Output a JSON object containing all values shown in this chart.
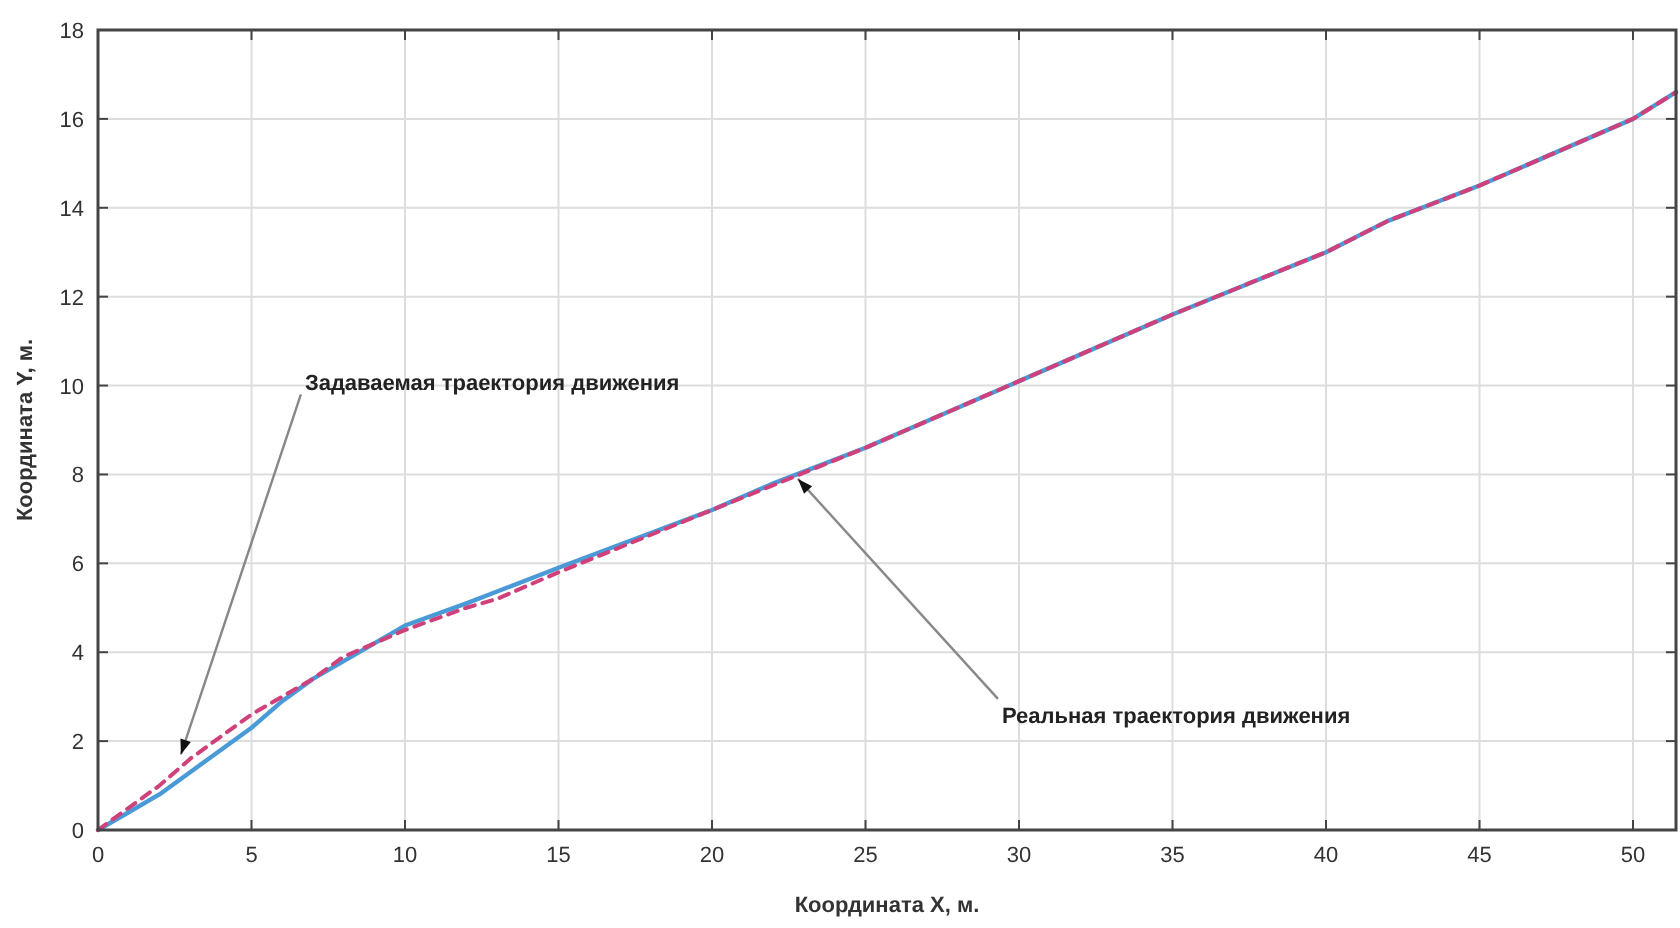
{
  "chart_data": {
    "type": "line",
    "xlabel": "Координата X, м.",
    "ylabel": "Координата Y, м.",
    "xlim": [
      0,
      51.4
    ],
    "ylim": [
      0,
      18
    ],
    "xticks": [
      0,
      5,
      10,
      15,
      20,
      25,
      30,
      35,
      40,
      45,
      50
    ],
    "yticks": [
      0,
      2,
      4,
      6,
      8,
      10,
      12,
      14,
      16,
      18
    ],
    "grid": true,
    "series": [
      {
        "color": "#d0407a",
        "line_style": "dashed",
        "x": [
          0,
          1,
          2,
          3,
          4,
          5,
          6,
          7,
          8,
          10,
          12,
          13,
          15,
          20,
          25,
          30,
          35,
          40,
          42,
          45,
          50,
          51.4
        ],
        "values": [
          0,
          0.5,
          1.0,
          1.6,
          2.1,
          2.6,
          3.0,
          3.4,
          3.9,
          4.5,
          5.0,
          5.2,
          5.8,
          7.2,
          8.6,
          10.1,
          11.6,
          13.0,
          13.7,
          14.5,
          16.0,
          16.6
        ]
      },
      {
        "color": "#4a9ad8",
        "line_style": "solid",
        "x": [
          0,
          1,
          2,
          3,
          4,
          5,
          6,
          7,
          8,
          10,
          12,
          15,
          20,
          22,
          25,
          30,
          35,
          40,
          42,
          45,
          50,
          51.4
        ],
        "values": [
          0,
          0.4,
          0.8,
          1.3,
          1.8,
          2.3,
          2.9,
          3.4,
          3.8,
          4.6,
          5.1,
          5.9,
          7.2,
          7.8,
          8.6,
          10.1,
          11.6,
          13.0,
          13.7,
          14.5,
          16.0,
          16.6
        ]
      }
    ],
    "annotations": [
      {
        "text": "Задаваемая траектория движения",
        "x": 2.7,
        "y": 1.7
      },
      {
        "text": "Реальная траектория движения",
        "x": 22.8,
        "y": 7.9
      }
    ]
  }
}
